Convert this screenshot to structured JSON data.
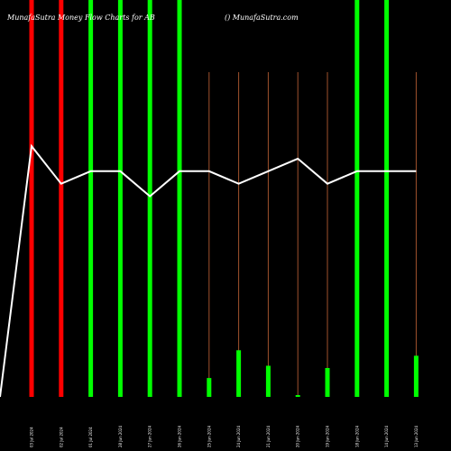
{
  "chart_data": {
    "type": "bar",
    "title_left": "MunafaSutra  Money Flow  Charts for AB",
    "title_right": "() MunafaSutra.com",
    "colors": {
      "background": "#000000",
      "up": "#00ff00",
      "down": "#ff0000",
      "thin": "#a0522d",
      "line": "#ffffff",
      "text": "#ffffff"
    },
    "bars": [
      {
        "label": "03 Jul 2024",
        "color": "red",
        "full": true,
        "value": 100
      },
      {
        "label": "02 Jul 2024",
        "color": "red",
        "full": true,
        "value": 100
      },
      {
        "label": "01 Jul 2024",
        "color": "green",
        "full": true,
        "value": 100
      },
      {
        "label": "28 Jun 2024",
        "color": "green",
        "full": true,
        "value": 100
      },
      {
        "label": "27 Jun 2024",
        "color": "green",
        "full": true,
        "value": 100
      },
      {
        "label": "26 Jun 2024",
        "color": "green",
        "full": true,
        "value": 100
      },
      {
        "label": "25 Jun 2024",
        "color": "green",
        "full": false,
        "value": 17
      },
      {
        "label": "24 Jun 2024",
        "color": "green",
        "full": false,
        "value": 42
      },
      {
        "label": "21 Jun 2024",
        "color": "green",
        "full": false,
        "value": 28
      },
      {
        "label": "20 Jun 2024",
        "color": "green",
        "full": false,
        "value": 1
      },
      {
        "label": "19 Jun 2024",
        "color": "green",
        "full": false,
        "value": 26
      },
      {
        "label": "18 Jun 2024",
        "color": "green",
        "full": true,
        "value": 100
      },
      {
        "label": "14 Jun 2024",
        "color": "green",
        "full": true,
        "value": 100
      },
      {
        "label": "13 Jun 2024",
        "color": "green",
        "full": false,
        "value": 37
      }
    ],
    "line": [
      0,
      100,
      85,
      90,
      90,
      80,
      90,
      90,
      85,
      90,
      95,
      85,
      90,
      90
    ]
  }
}
